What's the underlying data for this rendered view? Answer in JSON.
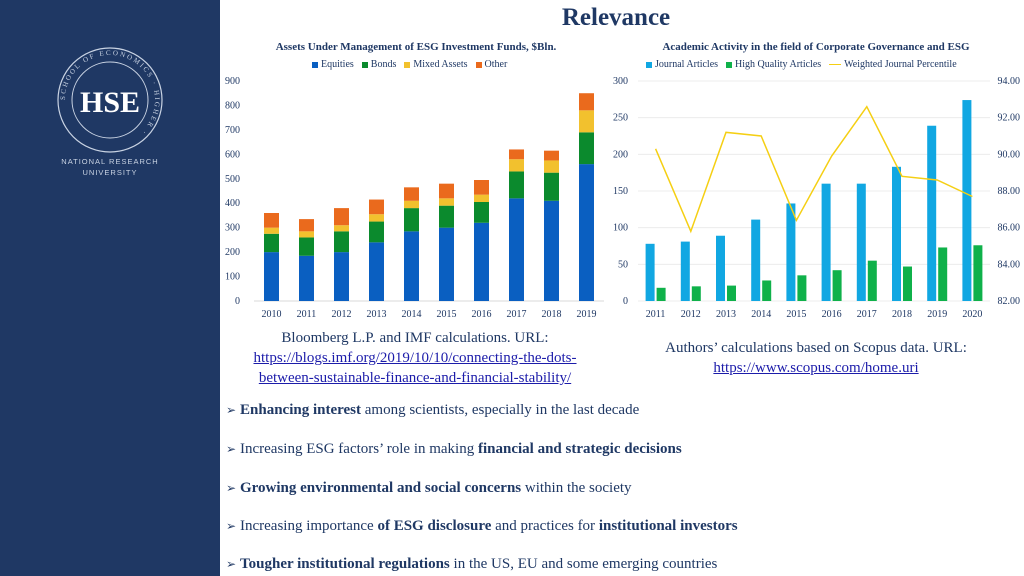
{
  "slide": {
    "title": "Relevance"
  },
  "brand": {
    "ring_text": "SCHOOL OF ECONOMICS · HIGHER ·",
    "logo_mark": "HSE",
    "name_line1": "NATIONAL RESEARCH",
    "name_line2": "UNIVERSITY"
  },
  "colors": {
    "sidebar": "#1f3864",
    "equities": "#0a5fc1",
    "bonds": "#0b8a2d",
    "mixed": "#f2c12e",
    "other": "#ea6a1d",
    "journal": "#11a7e2",
    "high_quality": "#0fb14a",
    "weighted": "#f5cf13"
  },
  "chart_data": [
    {
      "type": "bar",
      "title": "Assets Under Management of ESG Investment Funds, $Bln.",
      "stacked": true,
      "categories": [
        "2010",
        "2011",
        "2012",
        "2013",
        "2014",
        "2015",
        "2016",
        "2017",
        "2018",
        "2019"
      ],
      "series": [
        {
          "name": "Equities",
          "values": [
            200,
            185,
            200,
            240,
            285,
            300,
            320,
            420,
            410,
            560
          ]
        },
        {
          "name": "Bonds",
          "values": [
            75,
            75,
            85,
            85,
            95,
            90,
            85,
            110,
            115,
            130
          ]
        },
        {
          "name": "Mixed Assets",
          "values": [
            25,
            25,
            25,
            30,
            30,
            30,
            30,
            50,
            50,
            90
          ]
        },
        {
          "name": "Other",
          "values": [
            60,
            50,
            70,
            60,
            55,
            60,
            60,
            40,
            40,
            70
          ]
        }
      ],
      "yticks": [
        "0",
        "100",
        "200",
        "300",
        "400",
        "500",
        "600",
        "700",
        "800",
        "900"
      ],
      "ylim": [
        0,
        900
      ],
      "legend": "top"
    },
    {
      "type": "bar+line",
      "title": "Academic Activity in the field of Corporate Governance and ESG",
      "categories": [
        "2011",
        "2012",
        "2013",
        "2014",
        "2015",
        "2016",
        "2017",
        "2018",
        "2019",
        "2020"
      ],
      "series": [
        {
          "name": "Journal Articles",
          "type": "bar",
          "axis": "left",
          "values": [
            78,
            81,
            89,
            111,
            133,
            160,
            160,
            183,
            239,
            274
          ]
        },
        {
          "name": "High Quality Articles",
          "type": "bar",
          "axis": "left",
          "values": [
            18,
            20,
            21,
            28,
            35,
            42,
            55,
            47,
            73,
            76
          ]
        },
        {
          "name": "Weighted Journal Percentile",
          "type": "line",
          "axis": "right",
          "values": [
            90.3,
            85.8,
            91.2,
            91.0,
            86.4,
            89.9,
            92.6,
            88.8,
            88.6,
            87.7
          ]
        }
      ],
      "yticks_left": [
        "0",
        "50",
        "100",
        "150",
        "200",
        "250",
        "300"
      ],
      "ylim_left": [
        0,
        300
      ],
      "yticks_right": [
        "82.00",
        "84.00",
        "86.00",
        "88.00",
        "90.00",
        "92.00",
        "94.00"
      ],
      "ylim_right": [
        82,
        94
      ],
      "legend": "top"
    }
  ],
  "sources": {
    "left_line1": "Bloomberg L.P. and IMF calculations. URL:",
    "left_url1": "https://blogs.imf.org/2019/10/10/connecting-the-dots-",
    "left_url2": "between-sustainable-finance-and-financial-stability/",
    "right_line1": "Authors’ calculations based on Scopus data. URL:",
    "right_url": "https://www.scopus.com/home.uri"
  },
  "bullets": [
    {
      "parts": [
        {
          "t": "Enhancing interest",
          "b": true
        },
        {
          "t": " among scientists, especially in the last decade",
          "b": false
        }
      ]
    },
    {
      "parts": [
        {
          "t": "Increasing ESG factors’ role in making ",
          "b": false
        },
        {
          "t": "financial and strategic decisions",
          "b": true
        }
      ]
    },
    {
      "parts": [
        {
          "t": "Growing environmental and social concerns",
          "b": true
        },
        {
          "t": " within the society",
          "b": false
        }
      ]
    },
    {
      "parts": [
        {
          "t": "Increasing importance ",
          "b": false
        },
        {
          "t": "of ESG disclosure",
          "b": true
        },
        {
          "t": " and practices for ",
          "b": false
        },
        {
          "t": "institutional investors",
          "b": true
        }
      ]
    },
    {
      "parts": [
        {
          "t": "Tougher institutional regulations",
          "b": true
        },
        {
          "t": " in the US, EU and some emerging countries",
          "b": false
        }
      ]
    }
  ]
}
